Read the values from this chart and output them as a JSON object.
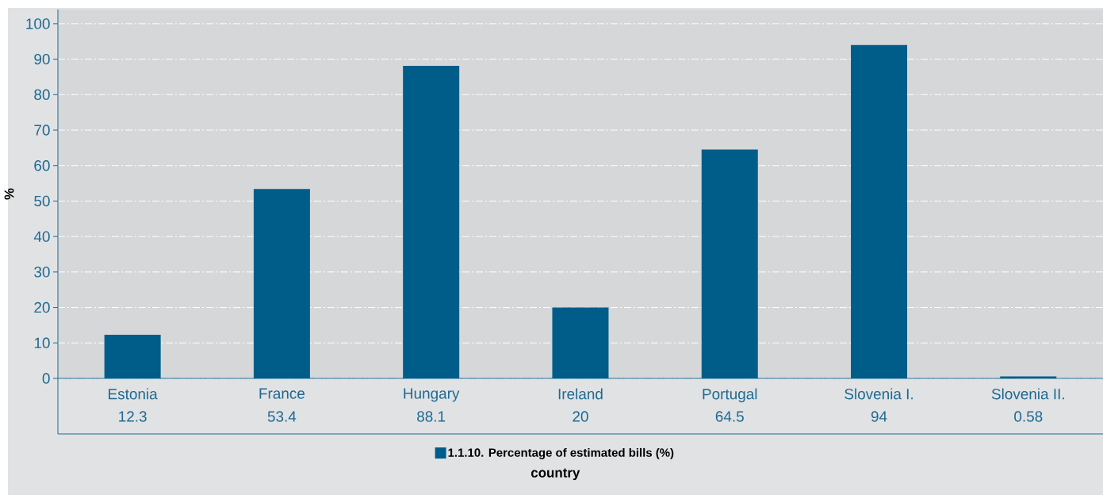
{
  "chart_data": {
    "type": "bar",
    "xlabel": "country",
    "ylabel": "%",
    "categories": [
      "Estonia",
      "France",
      "Hungary",
      "Ireland",
      "Portugal",
      "Slovenia I.",
      "Slovenia II."
    ],
    "series": [
      {
        "name": "1.1.10. Percentage of estimated bills (%)",
        "color": "#005d8a",
        "values": [
          12.3,
          53.4,
          88.1,
          20,
          64.5,
          94,
          0.58
        ]
      }
    ],
    "ylim": [
      0,
      104
    ],
    "yticks": [
      0,
      10,
      20,
      30,
      40,
      50,
      60,
      70,
      80,
      90,
      100
    ],
    "grid": "y",
    "legend": "bottom",
    "data_labels": true
  }
}
